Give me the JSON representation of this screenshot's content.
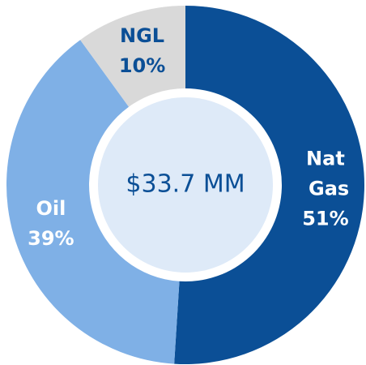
{
  "chart_data": {
    "type": "donut",
    "center_label": "$33.7 MM",
    "categories": [
      "Nat Gas",
      "Oil",
      "NGL"
    ],
    "values": [
      51,
      39,
      10
    ],
    "value_labels": [
      "51%",
      "39%",
      "10%"
    ],
    "colors": [
      "#0b4f96",
      "#7fb0e6",
      "#d9d9d9"
    ],
    "center_color": "#deeaf8"
  }
}
